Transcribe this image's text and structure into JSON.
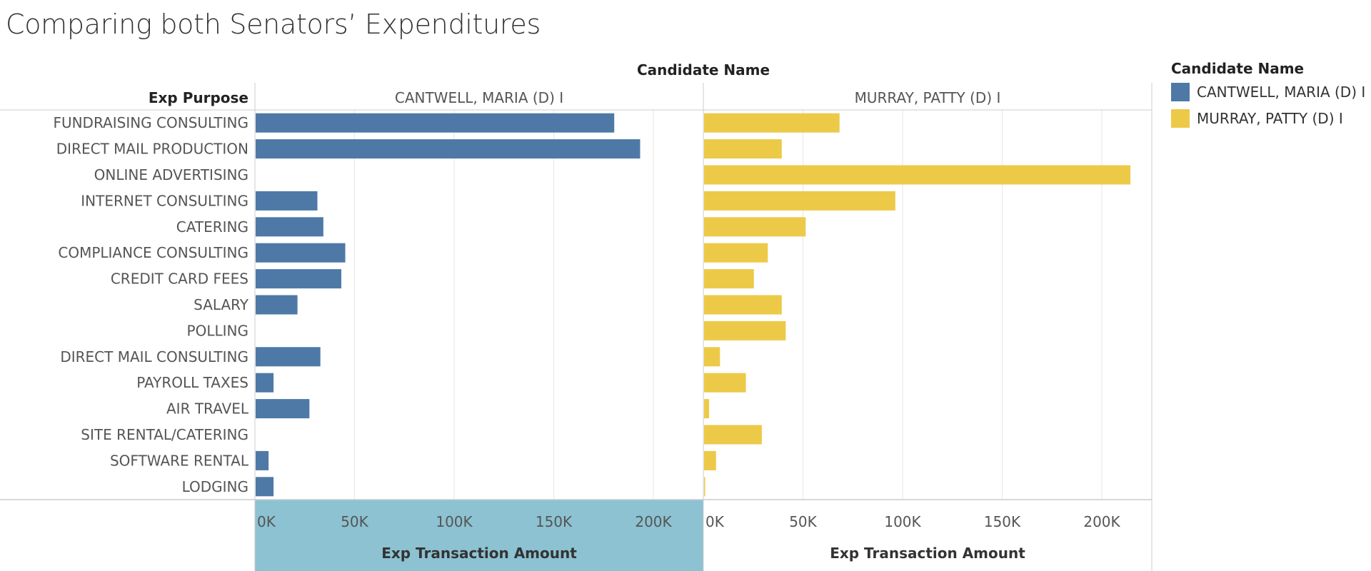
{
  "title": "Comparing both Senators’ Expenditures",
  "legend": {
    "title": "Candidate Name",
    "items": [
      {
        "label": "CANTWELL, MARIA (D) I",
        "color": "#4e79a7"
      },
      {
        "label": "MURRAY, PATTY (D) I",
        "color": "#edc948"
      }
    ]
  },
  "colors": {
    "highlight_axis_bg": "#8cc2d2",
    "gridline": "#e6e6e6",
    "divider": "#cccccc"
  },
  "chart_data": {
    "type": "bar",
    "orientation": "horizontal",
    "column_header": "Candidate Name",
    "row_header": "Exp Purpose",
    "categories": [
      "FUNDRAISING CONSULTING",
      "DIRECT MAIL PRODUCTION",
      "ONLINE ADVERTISING",
      "INTERNET CONSULTING",
      "CATERING",
      "COMPLIANCE CONSULTING",
      "CREDIT CARD FEES",
      "SALARY",
      "POLLING",
      "DIRECT MAIL CONSULTING",
      "PAYROLL TAXES",
      "AIR TRAVEL",
      "SITE RENTAL/CATERING",
      "SOFTWARE RENTAL",
      "LODGING"
    ],
    "series": [
      {
        "name": "CANTWELL, MARIA (D) I",
        "color": "#4e79a7",
        "values": [
          180000,
          193000,
          0,
          31000,
          34000,
          45000,
          43000,
          21000,
          0,
          32500,
          9000,
          27000,
          0,
          6500,
          9000
        ],
        "xlabel": "Exp Transaction Amount"
      },
      {
        "name": "MURRAY, PATTY (D) I",
        "color": "#edc948",
        "values": [
          68000,
          39000,
          214000,
          96000,
          51000,
          32000,
          25000,
          39000,
          41000,
          8000,
          21000,
          2500,
          29000,
          6000,
          500
        ],
        "xlabel": "Exp Transaction Amount"
      }
    ],
    "xlim": [
      0,
      225000
    ],
    "xticks": [
      "0K",
      "50K",
      "100K",
      "150K",
      "200K"
    ],
    "xtick_values": [
      0,
      50000,
      100000,
      150000,
      200000
    ],
    "grid": true,
    "legend_position": "right"
  }
}
